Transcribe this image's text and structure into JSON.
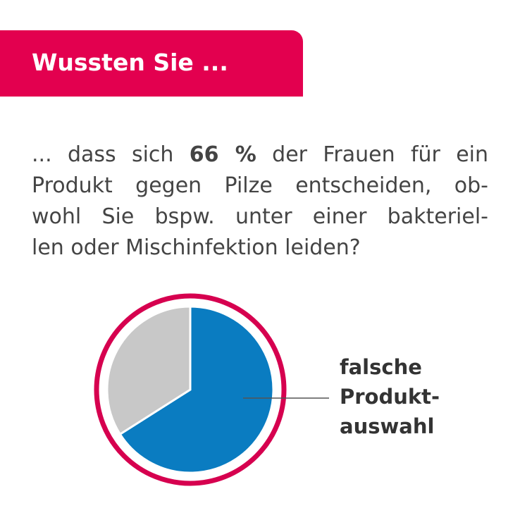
{
  "header": {
    "title": "Wussten Sie ..."
  },
  "paragraph": {
    "lines": [
      {
        "before": "... dass sich ",
        "bold": "66 %",
        "after": " der Frauen für ein"
      },
      "Produkt gegen Pilze entscheiden, ob-",
      "wohl Sie bspw. unter einer bakteriel-",
      "len oder Mischinfektion leiden?"
    ]
  },
  "chart_data": {
    "type": "pie",
    "values": [
      66,
      34
    ],
    "colors": [
      "#0a7cc1",
      "#c8c8c8"
    ],
    "ring_color": "#d6004f",
    "annotation_lines": [
      "falsche",
      "Produkt-",
      "auswahl"
    ]
  }
}
